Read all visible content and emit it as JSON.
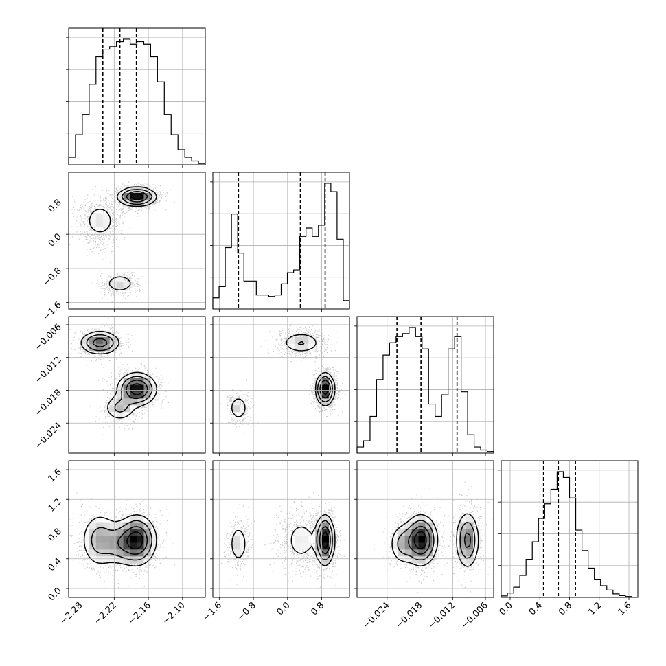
{
  "chart_data": {
    "type": "corner",
    "parameters": [
      {
        "range": [
          -2.3,
          -2.06
        ],
        "ticks": [
          -2.28,
          -2.22,
          -2.16,
          -2.1
        ],
        "tick_labels": [
          "−2.28",
          "−2.22",
          "−2.16",
          "−2.10"
        ],
        "quantiles": [
          -2.24,
          -2.21,
          -2.181
        ],
        "hist": [
          0.3,
          1.2,
          2.0,
          3.2,
          4.3,
          4.6,
          4.7,
          4.9,
          5.0,
          4.8,
          4.9,
          4.8,
          4.3,
          3.3,
          2.0,
          1.2,
          0.6,
          0.3,
          0.15,
          0.05
        ]
      },
      {
        "range": [
          -1.75,
          1.45
        ],
        "ticks": [
          -1.6,
          -0.8,
          0.0,
          0.8
        ],
        "tick_labels": [
          "−1.6",
          "−0.8",
          "0.0",
          "0.8"
        ],
        "quantiles": [
          -1.15,
          0.3,
          0.88
        ],
        "hist": [
          0.4,
          0.8,
          2.2,
          3.4,
          2.0,
          1.0,
          1.0,
          0.5,
          0.5,
          0.45,
          0.5,
          0.9,
          1.3,
          1.4,
          2.6,
          2.9,
          2.6,
          3.0,
          4.5,
          4.2,
          2.5,
          0.3
        ]
      },
      {
        "range": [
          -0.0295,
          -0.0045
        ],
        "ticks": [
          -0.024,
          -0.018,
          -0.012,
          -0.006
        ],
        "tick_labels": [
          "−0.024",
          "−0.018",
          "−0.012",
          "−0.006"
        ],
        "quantiles": [
          -0.0222,
          -0.0178,
          -0.0112
        ],
        "hist": [
          0.2,
          0.4,
          1.2,
          2.4,
          3.2,
          3.6,
          3.8,
          3.9,
          4.1,
          3.8,
          3.4,
          1.6,
          1.2,
          1.9,
          3.4,
          3.8,
          2.0,
          0.6,
          0.2,
          0.1,
          0.05
        ]
      },
      {
        "range": [
          -0.12,
          1.72
        ],
        "ticks": [
          0.0,
          0.4,
          0.8,
          1.2,
          1.6
        ],
        "tick_labels": [
          "0.0",
          "0.4",
          "0.8",
          "1.2",
          "1.6"
        ],
        "quantiles": [
          0.45,
          0.65,
          0.88
        ],
        "hist": [
          0.05,
          0.15,
          0.35,
          0.75,
          1.3,
          1.9,
          2.7,
          3.2,
          3.7,
          4.3,
          4.1,
          3.4,
          2.3,
          1.6,
          1.0,
          0.6,
          0.4,
          0.25,
          0.12,
          0.06,
          0.03,
          0.01
        ]
      }
    ],
    "modes": [
      {
        "weight": 0.55,
        "mean": [
          -2.18,
          0.88,
          -0.0178,
          0.65
        ],
        "sd": [
          0.017,
          0.11,
          0.0015,
          0.17
        ]
      },
      {
        "weight": 0.3,
        "mean": [
          -2.245,
          0.32,
          -0.0093,
          0.65
        ],
        "sd": [
          0.018,
          0.26,
          0.0011,
          0.2
        ]
      },
      {
        "weight": 0.15,
        "mean": [
          -2.21,
          -1.15,
          -0.0212,
          0.6
        ],
        "sd": [
          0.015,
          0.12,
          0.0013,
          0.15
        ]
      }
    ],
    "grid": true
  }
}
